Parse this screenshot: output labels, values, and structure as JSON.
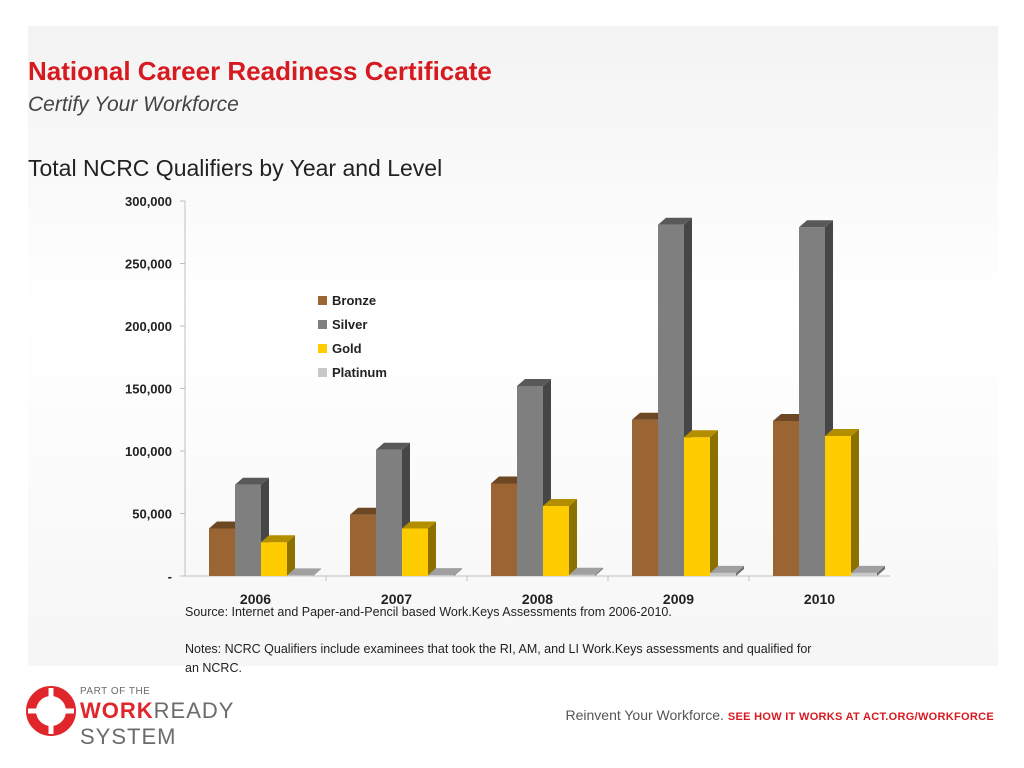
{
  "header": {
    "title": "National Career Readiness Certificate",
    "subtitle": "Certify Your Workforce",
    "chart_heading": "Total NCRC Qualifiers by Year and Level"
  },
  "chart_data": {
    "type": "bar",
    "style": "3d-clustered",
    "categories": [
      "2006",
      "2007",
      "2008",
      "2009",
      "2010"
    ],
    "series": [
      {
        "name": "Bronze",
        "color": "#9b6533",
        "values": [
          38000,
          49000,
          74000,
          125000,
          124000
        ]
      },
      {
        "name": "Silver",
        "color": "#7f7f7f",
        "values": [
          73000,
          101000,
          152000,
          281000,
          279000
        ]
      },
      {
        "name": "Gold",
        "color": "#ffcc00",
        "values": [
          27000,
          38000,
          56000,
          111000,
          112000
        ]
      },
      {
        "name": "Platinum",
        "color": "#c8c8c8",
        "values": [
          500,
          700,
          1000,
          2500,
          2500
        ]
      }
    ],
    "ylim": [
      0,
      300000
    ],
    "yticks": [
      0,
      50000,
      100000,
      150000,
      200000,
      250000,
      300000
    ],
    "ytick_labels": [
      "-",
      "50,000",
      "100,000",
      "150,000",
      "200,000",
      "250,000",
      "300,000"
    ],
    "legend_position": "inside-upper-left",
    "grid": false
  },
  "notes": {
    "source": "Source: Internet and Paper-and-Pencil based Work.Keys Assessments from 2006-2010.",
    "notes": "Notes: NCRC Qualifiers include examinees that took the RI, AM, and LI Work.Keys assessments and qualified for an NCRC."
  },
  "logo": {
    "small": "PART OF THE",
    "work": "WORK",
    "rest": "READY SYSTEM"
  },
  "footer": {
    "tagline": "Reinvent Your Workforce.",
    "cta": "SEE HOW IT WORKS AT ACT.ORG/WORKFORCE"
  }
}
